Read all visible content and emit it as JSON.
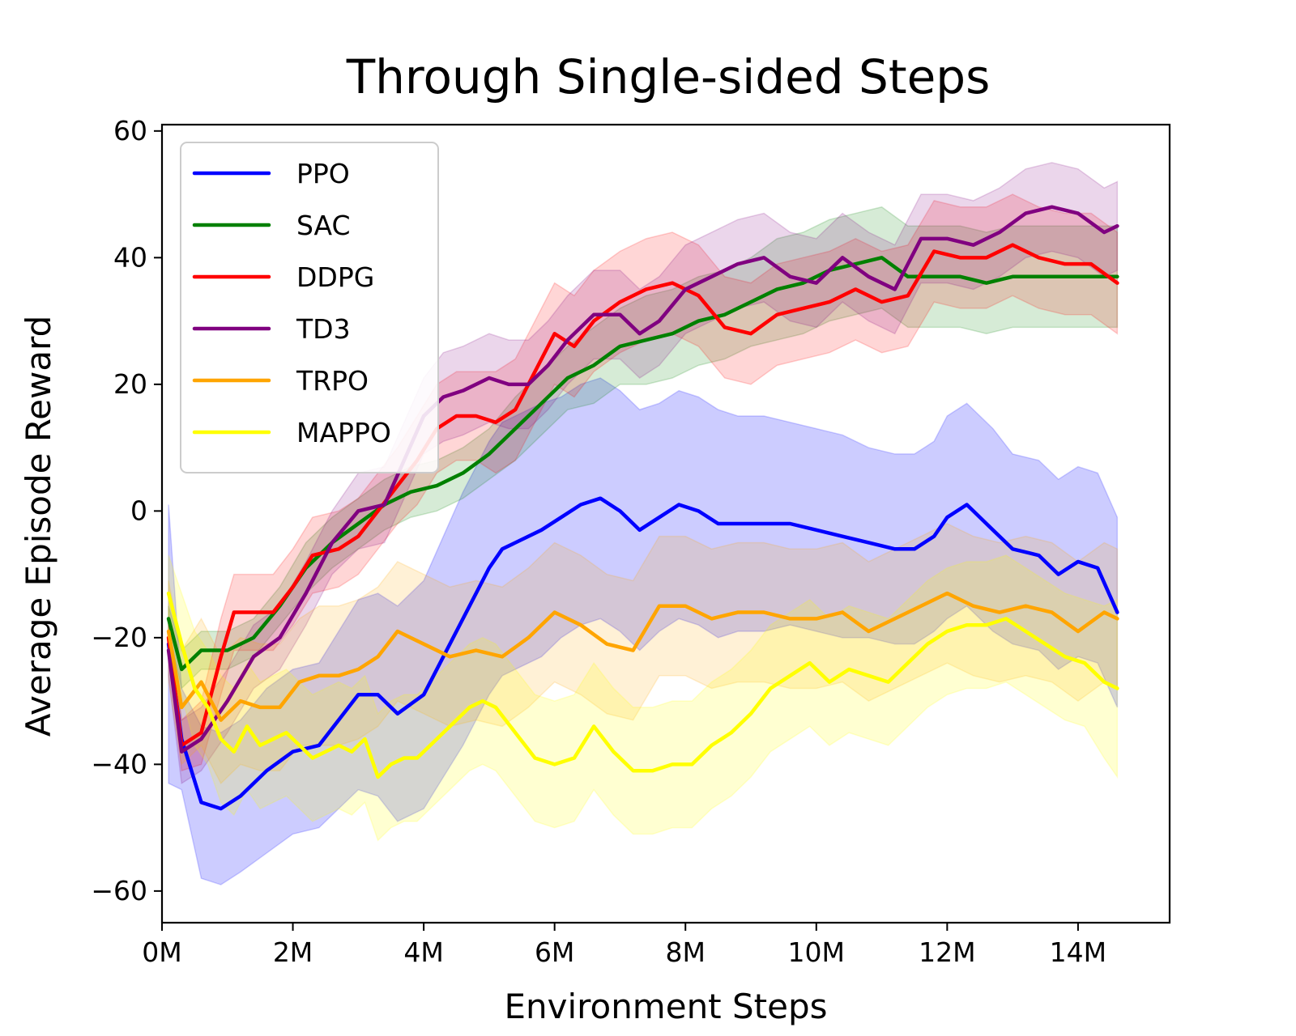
{
  "chart_data": {
    "type": "line",
    "title": "Through Single-sided Steps",
    "xlabel": "Environment Steps",
    "ylabel": "Average Episode Reward",
    "xlim": [
      0,
      15.4
    ],
    "ylim": [
      -65,
      61
    ],
    "x_ticks": [
      {
        "value": 0,
        "label": "0M"
      },
      {
        "value": 2,
        "label": "2M"
      },
      {
        "value": 4,
        "label": "4M"
      },
      {
        "value": 6,
        "label": "6M"
      },
      {
        "value": 8,
        "label": "8M"
      },
      {
        "value": 10,
        "label": "10M"
      },
      {
        "value": 12,
        "label": "12M"
      },
      {
        "value": 14,
        "label": "14M"
      }
    ],
    "y_ticks": [
      {
        "value": -60,
        "label": "−60"
      },
      {
        "value": -40,
        "label": "−40"
      },
      {
        "value": -20,
        "label": "−20"
      },
      {
        "value": 0,
        "label": "0"
      },
      {
        "value": 20,
        "label": "20"
      },
      {
        "value": 40,
        "label": "40"
      },
      {
        "value": 60,
        "label": "60"
      }
    ],
    "grid": false,
    "legend_position": "top-left",
    "series": [
      {
        "name": "PPO",
        "color": "#0000ff",
        "x": [
          0.1,
          0.3,
          0.6,
          0.9,
          1.2,
          1.6,
          2.0,
          2.4,
          2.7,
          3.0,
          3.3,
          3.6,
          4.0,
          4.3,
          4.6,
          5.0,
          5.2,
          5.4,
          5.8,
          6.1,
          6.4,
          6.7,
          7.0,
          7.3,
          7.6,
          7.9,
          8.2,
          8.5,
          8.8,
          9.2,
          9.6,
          10.0,
          10.4,
          10.8,
          11.2,
          11.5,
          11.8,
          12.0,
          12.3,
          12.7,
          13.0,
          13.4,
          13.7,
          14.0,
          14.3,
          14.6
        ],
        "y": [
          -21,
          -36,
          -46,
          -47,
          -45,
          -41,
          -38,
          -37,
          -33,
          -29,
          -29,
          -32,
          -29,
          -23,
          -17,
          -9,
          -6,
          -5,
          -3,
          -1,
          1,
          2,
          0,
          -3,
          -1,
          1,
          0,
          -2,
          -2,
          -2,
          -2,
          -3,
          -4,
          -5,
          -6,
          -6,
          -4,
          -1,
          1,
          -3,
          -6,
          -7,
          -10,
          -8,
          -9,
          -16
        ],
        "band": [
          22,
          8,
          12,
          12,
          12,
          13,
          13,
          13,
          14,
          15,
          16,
          17,
          18,
          19,
          20,
          20,
          20,
          20,
          20,
          19,
          19,
          19,
          19,
          19,
          18,
          18,
          18,
          18,
          17,
          17,
          16,
          16,
          16,
          15,
          15,
          15,
          15,
          16,
          16,
          16,
          15,
          15,
          15,
          15,
          15,
          15
        ]
      },
      {
        "name": "SAC",
        "color": "#008000",
        "x": [
          0.1,
          0.3,
          0.6,
          1.0,
          1.4,
          1.8,
          2.2,
          2.6,
          3.0,
          3.4,
          3.8,
          4.2,
          4.6,
          5.0,
          5.4,
          5.8,
          6.2,
          6.6,
          7.0,
          7.4,
          7.8,
          8.2,
          8.6,
          9.0,
          9.4,
          9.8,
          10.2,
          10.6,
          11.0,
          11.4,
          11.8,
          12.2,
          12.6,
          13.0,
          13.4,
          13.8,
          14.2,
          14.6
        ],
        "y": [
          -17,
          -25,
          -22,
          -22,
          -20,
          -15,
          -9,
          -5,
          -2,
          1,
          3,
          4,
          6,
          9,
          13,
          17,
          21,
          23,
          26,
          27,
          28,
          30,
          31,
          33,
          35,
          36,
          38,
          39,
          40,
          37,
          37,
          37,
          36,
          37,
          37,
          37,
          37,
          37
        ],
        "band": [
          2,
          3,
          3,
          3,
          3,
          3,
          4,
          4,
          4,
          4,
          4,
          4,
          4,
          4,
          5,
          5,
          5,
          6,
          6,
          7,
          7,
          7,
          7,
          7,
          8,
          8,
          8,
          8,
          8,
          8,
          8,
          8,
          8,
          8,
          8,
          8,
          8,
          8
        ]
      },
      {
        "name": "DDPG",
        "color": "#ff0000",
        "x": [
          0.1,
          0.3,
          0.6,
          0.9,
          1.1,
          1.4,
          1.7,
          2.0,
          2.3,
          2.7,
          3.0,
          3.3,
          3.6,
          3.9,
          4.2,
          4.5,
          4.8,
          5.1,
          5.4,
          5.7,
          6.0,
          6.3,
          6.6,
          7.0,
          7.4,
          7.8,
          8.2,
          8.6,
          9.0,
          9.4,
          9.8,
          10.2,
          10.6,
          11.0,
          11.4,
          11.8,
          12.2,
          12.6,
          13.0,
          13.4,
          13.8,
          14.2,
          14.6
        ],
        "y": [
          -20,
          -37,
          -35,
          -23,
          -16,
          -16,
          -16,
          -12,
          -7,
          -6,
          -4,
          0,
          4,
          8,
          13,
          15,
          15,
          14,
          16,
          22,
          28,
          26,
          30,
          33,
          35,
          36,
          34,
          29,
          28,
          31,
          32,
          33,
          35,
          33,
          34,
          41,
          40,
          40,
          42,
          40,
          39,
          39,
          36
        ],
        "band": [
          3,
          4,
          5,
          6,
          6,
          6,
          6,
          6,
          6,
          6,
          6,
          6,
          6,
          7,
          7,
          7,
          7,
          8,
          8,
          8,
          8,
          8,
          8,
          8,
          8,
          8,
          8,
          8,
          8,
          8,
          8,
          8,
          8,
          8,
          8,
          8,
          8,
          8,
          8,
          8,
          8,
          8,
          8
        ]
      },
      {
        "name": "TD3",
        "color": "#800080",
        "x": [
          0.1,
          0.3,
          0.6,
          1.0,
          1.4,
          1.8,
          2.2,
          2.6,
          3.0,
          3.4,
          3.7,
          4.0,
          4.3,
          4.6,
          5.0,
          5.3,
          5.6,
          5.9,
          6.2,
          6.6,
          7.0,
          7.3,
          7.6,
          8.0,
          8.4,
          8.8,
          9.2,
          9.6,
          10.0,
          10.4,
          10.8,
          11.2,
          11.6,
          12.0,
          12.4,
          12.8,
          13.2,
          13.6,
          14.0,
          14.4,
          14.6
        ],
        "y": [
          -22,
          -38,
          -36,
          -30,
          -23,
          -20,
          -13,
          -5,
          0,
          1,
          8,
          15,
          18,
          19,
          21,
          20,
          20,
          23,
          27,
          31,
          31,
          28,
          30,
          35,
          37,
          39,
          40,
          37,
          36,
          40,
          37,
          35,
          43,
          43,
          42,
          44,
          47,
          48,
          47,
          44,
          45
        ],
        "band": [
          4,
          5,
          5,
          5,
          5,
          5,
          5,
          5,
          6,
          6,
          6,
          6,
          7,
          7,
          7,
          7,
          7,
          7,
          7,
          7,
          7,
          7,
          7,
          7,
          7,
          7,
          7,
          7,
          7,
          7,
          7,
          7,
          7,
          7,
          7,
          7,
          7,
          7,
          7,
          7,
          7
        ]
      },
      {
        "name": "TRPO",
        "color": "#ffa500",
        "x": [
          0.1,
          0.3,
          0.6,
          0.9,
          1.2,
          1.5,
          1.8,
          2.1,
          2.4,
          2.7,
          3.0,
          3.3,
          3.6,
          4.0,
          4.4,
          4.8,
          5.2,
          5.6,
          6.0,
          6.4,
          6.8,
          7.2,
          7.6,
          8.0,
          8.4,
          8.8,
          9.2,
          9.6,
          10.0,
          10.4,
          10.8,
          11.2,
          11.6,
          12.0,
          12.4,
          12.8,
          13.2,
          13.6,
          14.0,
          14.4,
          14.6
        ],
        "y": [
          -19,
          -31,
          -27,
          -33,
          -30,
          -31,
          -31,
          -27,
          -26,
          -26,
          -25,
          -23,
          -19,
          -21,
          -23,
          -22,
          -23,
          -20,
          -16,
          -18,
          -21,
          -22,
          -15,
          -15,
          -17,
          -16,
          -16,
          -17,
          -17,
          -16,
          -19,
          -17,
          -15,
          -13,
          -15,
          -16,
          -15,
          -16,
          -19,
          -16,
          -17
        ],
        "band": [
          8,
          9,
          10,
          10,
          10,
          10,
          10,
          10,
          11,
          11,
          11,
          11,
          11,
          11,
          11,
          11,
          11,
          11,
          11,
          11,
          11,
          11,
          11,
          11,
          11,
          11,
          11,
          11,
          11,
          11,
          11,
          11,
          11,
          11,
          11,
          11,
          11,
          11,
          11,
          11,
          11
        ]
      },
      {
        "name": "MAPPO",
        "color": "#ffff00",
        "x": [
          0.1,
          0.3,
          0.5,
          0.7,
          0.9,
          1.1,
          1.3,
          1.5,
          1.7,
          1.9,
          2.1,
          2.3,
          2.5,
          2.7,
          2.9,
          3.1,
          3.3,
          3.5,
          3.7,
          3.9,
          4.1,
          4.3,
          4.5,
          4.7,
          4.9,
          5.1,
          5.4,
          5.7,
          6.0,
          6.3,
          6.6,
          6.9,
          7.2,
          7.5,
          7.8,
          8.1,
          8.4,
          8.7,
          9.0,
          9.3,
          9.6,
          9.9,
          10.2,
          10.5,
          10.8,
          11.1,
          11.4,
          11.7,
          12.0,
          12.3,
          12.6,
          12.9,
          13.2,
          13.5,
          13.8,
          14.1,
          14.4,
          14.6
        ],
        "y": [
          -13,
          -21,
          -28,
          -31,
          -36,
          -38,
          -34,
          -37,
          -36,
          -35,
          -37,
          -39,
          -38,
          -37,
          -38,
          -36,
          -42,
          -40,
          -39,
          -39,
          -37,
          -35,
          -33,
          -31,
          -30,
          -31,
          -35,
          -39,
          -40,
          -39,
          -34,
          -38,
          -41,
          -41,
          -40,
          -40,
          -37,
          -35,
          -32,
          -28,
          -26,
          -24,
          -27,
          -25,
          -26,
          -27,
          -24,
          -21,
          -19,
          -18,
          -18,
          -17,
          -19,
          -21,
          -23,
          -24,
          -27,
          -28
        ],
        "band": [
          6,
          8,
          9,
          9,
          10,
          10,
          10,
          10,
          10,
          10,
          10,
          10,
          10,
          10,
          10,
          10,
          10,
          10,
          10,
          10,
          10,
          10,
          10,
          10,
          10,
          10,
          10,
          10,
          10,
          10,
          10,
          10,
          10,
          10,
          10,
          10,
          10,
          10,
          10,
          10,
          10,
          10,
          10,
          10,
          10,
          10,
          10,
          10,
          10,
          10,
          10,
          10,
          10,
          10,
          10,
          10,
          12,
          14
        ]
      }
    ]
  }
}
